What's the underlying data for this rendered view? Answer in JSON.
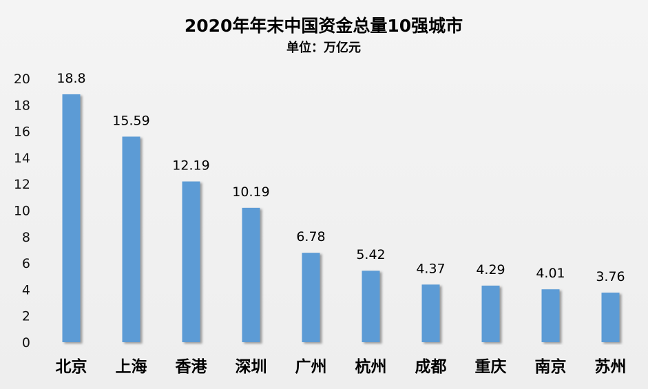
{
  "chart_data": {
    "type": "bar",
    "title": "2020年年末中国资金总量10强城市",
    "subtitle": "单位：万亿元",
    "categories": [
      "北京",
      "上海",
      "香港",
      "深圳",
      "广州",
      "杭州",
      "成都",
      "重庆",
      "南京",
      "苏州"
    ],
    "values": [
      18.8,
      15.59,
      12.19,
      10.19,
      6.78,
      5.42,
      4.37,
      4.29,
      4.01,
      3.76
    ],
    "value_labels": [
      "18.8",
      "15.59",
      "12.19",
      "10.19",
      "6.78",
      "5.42",
      "4.37",
      "4.29",
      "4.01",
      "3.76"
    ],
    "ylim": [
      0,
      20
    ],
    "yticks": [
      "0",
      "2",
      "4",
      "6",
      "8",
      "10",
      "12",
      "14",
      "16",
      "18",
      "20"
    ],
    "grid": false,
    "legend": "none",
    "bar_color": "#5b9bd5"
  }
}
